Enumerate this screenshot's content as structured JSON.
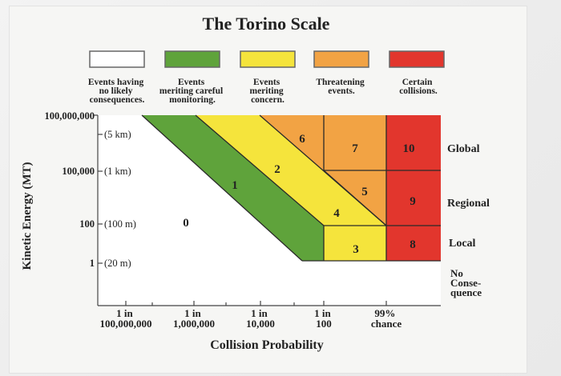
{
  "title": "The Torino Scale",
  "legend": [
    {
      "lines": [
        "Events having",
        "no likely",
        "consequences."
      ],
      "color": "#ffffff"
    },
    {
      "lines": [
        "Events",
        "meriting careful",
        "monitoring."
      ],
      "color": "#5fa33b"
    },
    {
      "lines": [
        "Events",
        "meriting",
        "concern."
      ],
      "color": "#f5e43c"
    },
    {
      "lines": [
        "Threatening",
        "events."
      ],
      "color": "#f2a344"
    },
    {
      "lines": [
        "Certain",
        "collisions."
      ],
      "color": "#e2362d"
    }
  ],
  "y_axis_label": "Kinetic Energy (MT)",
  "x_axis_label": "Collision Probability",
  "y_ticks": [
    {
      "value": "100,000,000",
      "size": ""
    },
    {
      "value": "",
      "size": "(5 km)"
    },
    {
      "value": "100,000",
      "size": "(1 km)"
    },
    {
      "value": "100",
      "size": "(100 m)"
    },
    {
      "value": "1",
      "size": "(20 m)"
    }
  ],
  "x_ticks": [
    {
      "lines": [
        "1 in",
        "100,000,000"
      ]
    },
    {
      "lines": [
        "1 in",
        "1,000,000"
      ]
    },
    {
      "lines": [
        "1 in",
        "10,000"
      ]
    },
    {
      "lines": [
        "1 in",
        "100"
      ]
    },
    {
      "lines": [
        "99%",
        "chance"
      ]
    }
  ],
  "levels": [
    "0",
    "1",
    "2",
    "3",
    "4",
    "5",
    "6",
    "7",
    "8",
    "9",
    "10"
  ],
  "row_labels": [
    {
      "lines": [
        "Global"
      ]
    },
    {
      "lines": [
        "Regional"
      ]
    },
    {
      "lines": [
        "Local"
      ]
    },
    {
      "lines": [
        "No",
        "Conse-",
        "quence"
      ]
    }
  ]
}
